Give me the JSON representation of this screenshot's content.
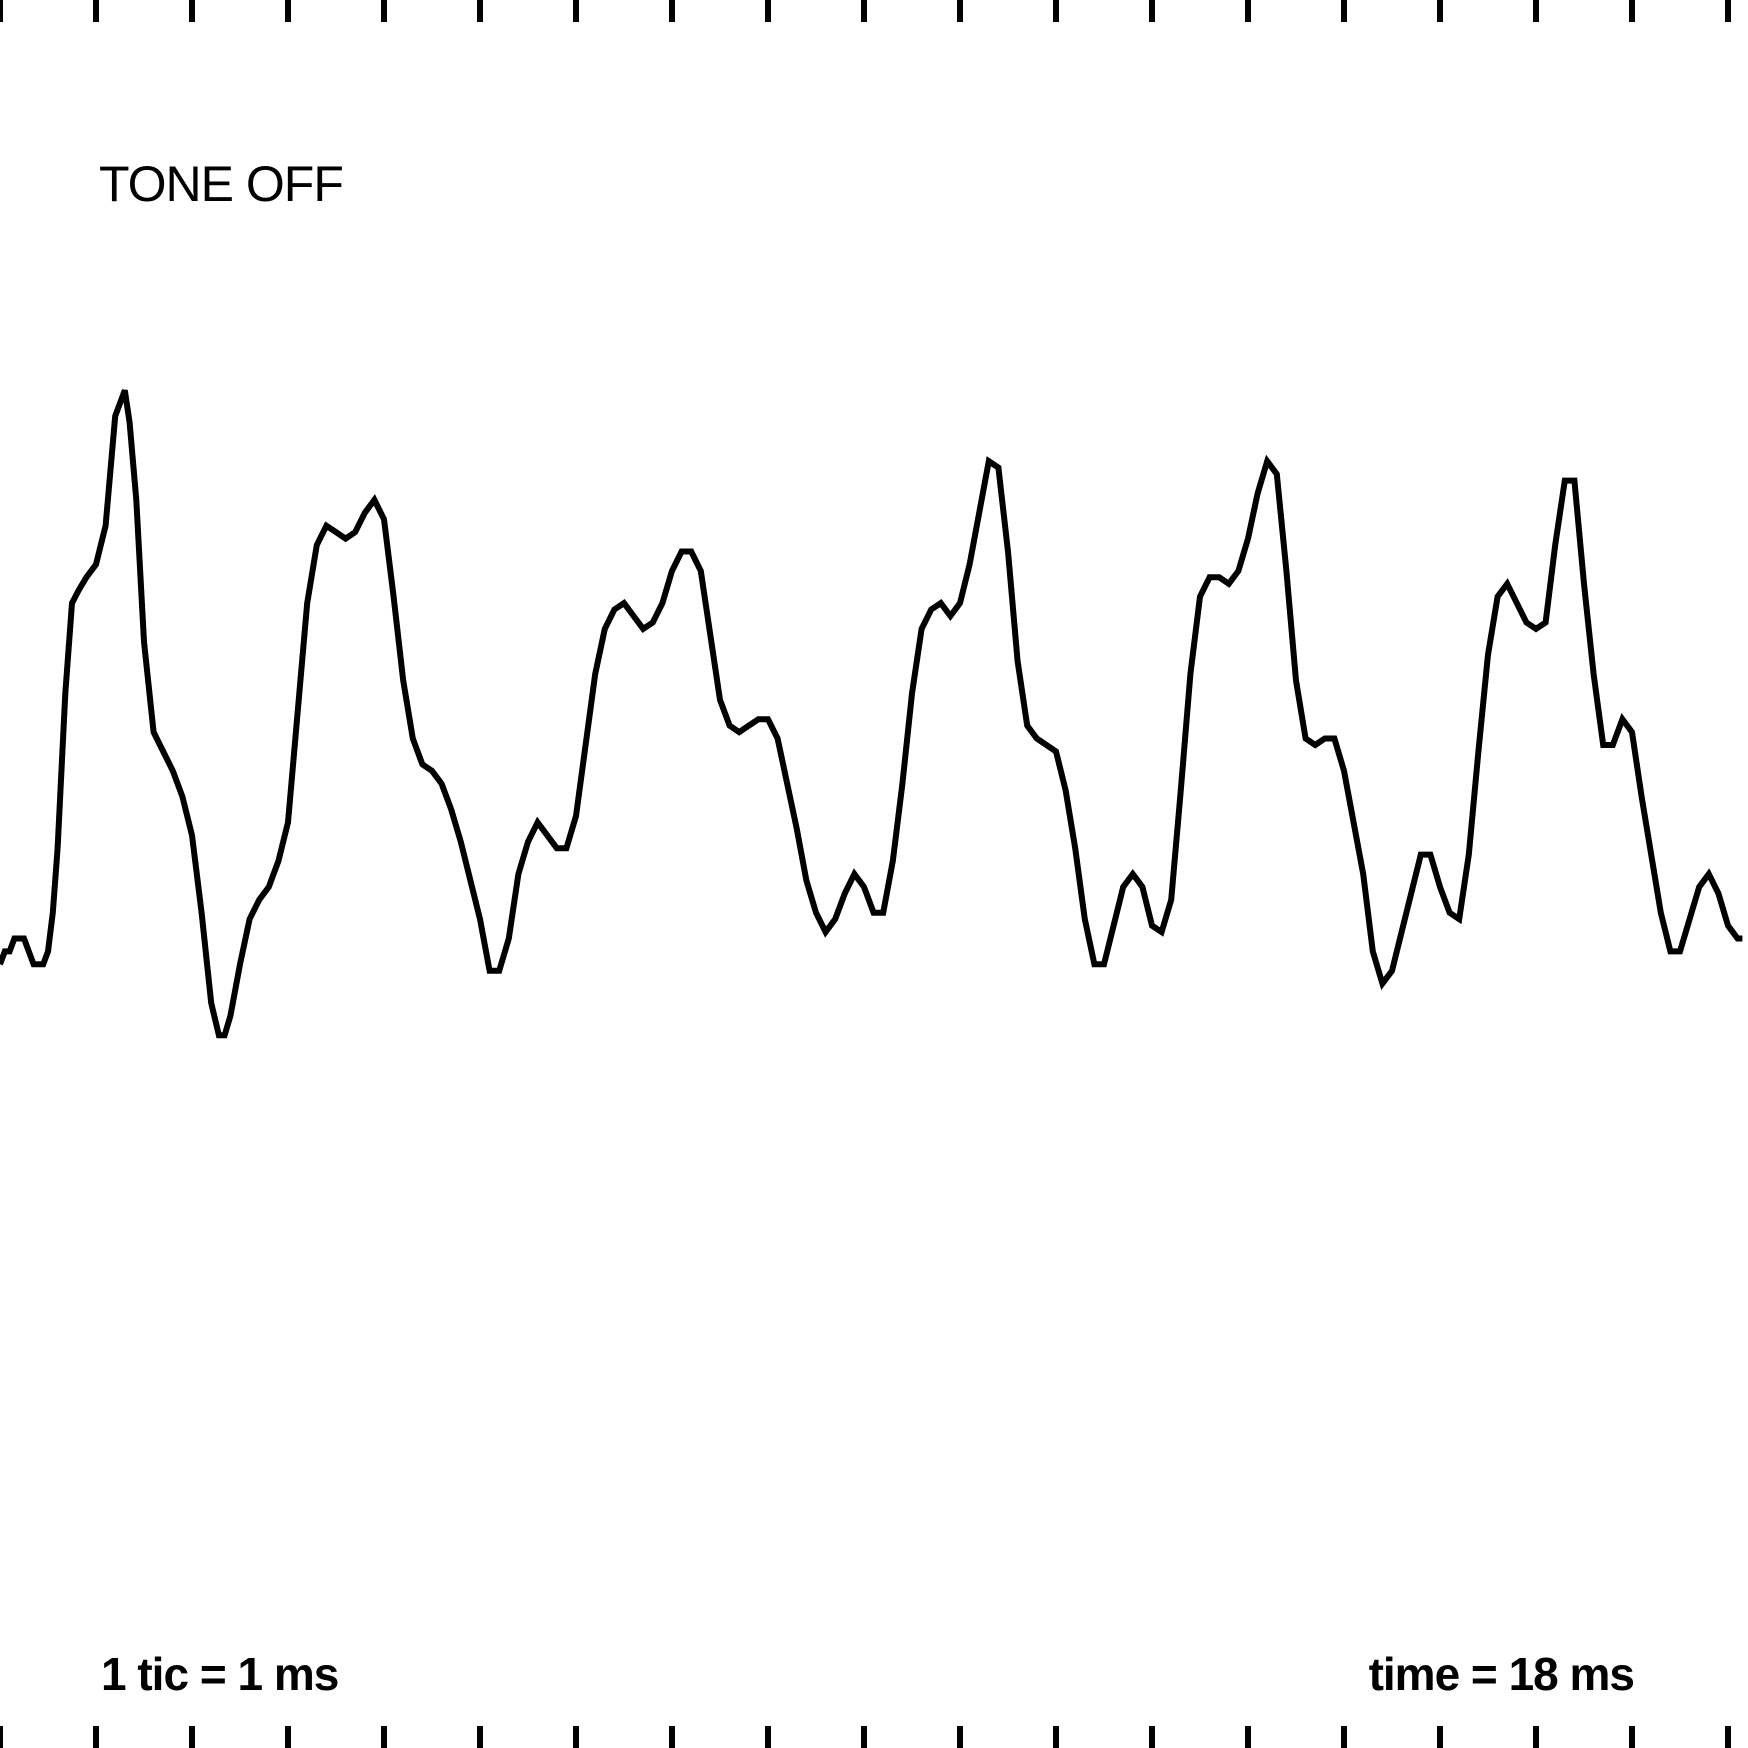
{
  "status_text": "TONE OFF",
  "scale_text": "1 tic = 1 ms",
  "time_text": "time = 18 ms",
  "colors": {
    "trace": "#000000",
    "ticks": "#000000",
    "background": "#ffffff"
  },
  "chart_data": {
    "type": "line",
    "xlim": [
      0,
      18.17
    ],
    "ylim": [
      -1,
      1
    ],
    "tick_interval_ms": 1,
    "tick_count": 19,
    "grid": false,
    "legend": "none",
    "series": [
      {
        "values": [
          [
            0.0,
            -0.14
          ],
          [
            0.05,
            -0.12
          ],
          [
            0.1,
            -0.12
          ],
          [
            0.15,
            -0.1
          ],
          [
            0.25,
            -0.1
          ],
          [
            0.3,
            -0.12
          ],
          [
            0.35,
            -0.14
          ],
          [
            0.45,
            -0.14
          ],
          [
            0.5,
            -0.12
          ],
          [
            0.55,
            -0.06
          ],
          [
            0.6,
            0.04
          ],
          [
            0.68,
            0.28
          ],
          [
            0.75,
            0.42
          ],
          [
            0.82,
            0.44
          ],
          [
            0.9,
            0.46
          ],
          [
            1.0,
            0.48
          ],
          [
            1.1,
            0.54
          ],
          [
            1.2,
            0.71
          ],
          [
            1.3,
            0.75
          ],
          [
            1.35,
            0.7
          ],
          [
            1.42,
            0.58
          ],
          [
            1.5,
            0.36
          ],
          [
            1.6,
            0.22
          ],
          [
            1.7,
            0.19
          ],
          [
            1.8,
            0.16
          ],
          [
            1.9,
            0.12
          ],
          [
            2.0,
            0.06
          ],
          [
            2.1,
            -0.06
          ],
          [
            2.2,
            -0.2
          ],
          [
            2.28,
            -0.25
          ],
          [
            2.34,
            -0.25
          ],
          [
            2.4,
            -0.22
          ],
          [
            2.5,
            -0.14
          ],
          [
            2.6,
            -0.07
          ],
          [
            2.7,
            -0.04
          ],
          [
            2.8,
            -0.02
          ],
          [
            2.9,
            0.02
          ],
          [
            3.0,
            0.08
          ],
          [
            3.1,
            0.25
          ],
          [
            3.2,
            0.42
          ],
          [
            3.3,
            0.51
          ],
          [
            3.4,
            0.54
          ],
          [
            3.5,
            0.53
          ],
          [
            3.6,
            0.52
          ],
          [
            3.7,
            0.53
          ],
          [
            3.8,
            0.56
          ],
          [
            3.9,
            0.58
          ],
          [
            4.0,
            0.55
          ],
          [
            4.1,
            0.43
          ],
          [
            4.2,
            0.3
          ],
          [
            4.3,
            0.21
          ],
          [
            4.4,
            0.17
          ],
          [
            4.5,
            0.16
          ],
          [
            4.6,
            0.14
          ],
          [
            4.7,
            0.1
          ],
          [
            4.8,
            0.05
          ],
          [
            4.9,
            -0.01
          ],
          [
            5.0,
            -0.07
          ],
          [
            5.1,
            -0.15
          ],
          [
            5.2,
            -0.15
          ],
          [
            5.3,
            -0.1
          ],
          [
            5.4,
            0.0
          ],
          [
            5.5,
            0.05
          ],
          [
            5.6,
            0.08
          ],
          [
            5.7,
            0.06
          ],
          [
            5.8,
            0.04
          ],
          [
            5.9,
            0.04
          ],
          [
            6.0,
            0.09
          ],
          [
            6.1,
            0.2
          ],
          [
            6.2,
            0.31
          ],
          [
            6.3,
            0.38
          ],
          [
            6.4,
            0.41
          ],
          [
            6.5,
            0.42
          ],
          [
            6.6,
            0.4
          ],
          [
            6.7,
            0.38
          ],
          [
            6.8,
            0.39
          ],
          [
            6.9,
            0.42
          ],
          [
            7.0,
            0.47
          ],
          [
            7.1,
            0.5
          ],
          [
            7.2,
            0.5
          ],
          [
            7.3,
            0.47
          ],
          [
            7.4,
            0.37
          ],
          [
            7.5,
            0.27
          ],
          [
            7.6,
            0.23
          ],
          [
            7.7,
            0.22
          ],
          [
            7.8,
            0.23
          ],
          [
            7.9,
            0.24
          ],
          [
            8.0,
            0.24
          ],
          [
            8.1,
            0.21
          ],
          [
            8.2,
            0.14
          ],
          [
            8.3,
            0.07
          ],
          [
            8.4,
            -0.01
          ],
          [
            8.5,
            -0.06
          ],
          [
            8.6,
            -0.09
          ],
          [
            8.7,
            -0.07
          ],
          [
            8.8,
            -0.03
          ],
          [
            8.9,
            0.0
          ],
          [
            9.0,
            -0.02
          ],
          [
            9.1,
            -0.06
          ],
          [
            9.2,
            -0.06
          ],
          [
            9.3,
            0.02
          ],
          [
            9.4,
            0.14
          ],
          [
            9.5,
            0.28
          ],
          [
            9.6,
            0.38
          ],
          [
            9.7,
            0.41
          ],
          [
            9.8,
            0.42
          ],
          [
            9.9,
            0.4
          ],
          [
            10.0,
            0.42
          ],
          [
            10.1,
            0.48
          ],
          [
            10.2,
            0.56
          ],
          [
            10.3,
            0.64
          ],
          [
            10.4,
            0.63
          ],
          [
            10.5,
            0.5
          ],
          [
            10.6,
            0.33
          ],
          [
            10.7,
            0.23
          ],
          [
            10.8,
            0.21
          ],
          [
            10.9,
            0.2
          ],
          [
            11.0,
            0.19
          ],
          [
            11.1,
            0.13
          ],
          [
            11.2,
            0.04
          ],
          [
            11.3,
            -0.07
          ],
          [
            11.4,
            -0.14
          ],
          [
            11.5,
            -0.14
          ],
          [
            11.6,
            -0.08
          ],
          [
            11.7,
            -0.02
          ],
          [
            11.8,
            0.0
          ],
          [
            11.9,
            -0.02
          ],
          [
            12.0,
            -0.08
          ],
          [
            12.1,
            -0.09
          ],
          [
            12.2,
            -0.04
          ],
          [
            12.3,
            0.13
          ],
          [
            12.4,
            0.31
          ],
          [
            12.5,
            0.43
          ],
          [
            12.6,
            0.46
          ],
          [
            12.7,
            0.46
          ],
          [
            12.8,
            0.45
          ],
          [
            12.9,
            0.47
          ],
          [
            13.0,
            0.52
          ],
          [
            13.1,
            0.59
          ],
          [
            13.2,
            0.64
          ],
          [
            13.3,
            0.62
          ],
          [
            13.4,
            0.47
          ],
          [
            13.5,
            0.3
          ],
          [
            13.6,
            0.21
          ],
          [
            13.7,
            0.2
          ],
          [
            13.8,
            0.21
          ],
          [
            13.9,
            0.21
          ],
          [
            14.0,
            0.16
          ],
          [
            14.1,
            0.08
          ],
          [
            14.2,
            0.0
          ],
          [
            14.3,
            -0.12
          ],
          [
            14.4,
            -0.17
          ],
          [
            14.5,
            -0.15
          ],
          [
            14.6,
            -0.09
          ],
          [
            14.7,
            -0.03
          ],
          [
            14.8,
            0.03
          ],
          [
            14.9,
            0.03
          ],
          [
            15.0,
            -0.02
          ],
          [
            15.1,
            -0.06
          ],
          [
            15.2,
            -0.07
          ],
          [
            15.3,
            0.03
          ],
          [
            15.4,
            0.19
          ],
          [
            15.5,
            0.34
          ],
          [
            15.6,
            0.43
          ],
          [
            15.7,
            0.45
          ],
          [
            15.8,
            0.42
          ],
          [
            15.9,
            0.39
          ],
          [
            16.0,
            0.38
          ],
          [
            16.1,
            0.39
          ],
          [
            16.2,
            0.51
          ],
          [
            16.3,
            0.61
          ],
          [
            16.4,
            0.61
          ],
          [
            16.5,
            0.45
          ],
          [
            16.6,
            0.31
          ],
          [
            16.7,
            0.2
          ],
          [
            16.8,
            0.2
          ],
          [
            16.9,
            0.24
          ],
          [
            17.0,
            0.22
          ],
          [
            17.1,
            0.12
          ],
          [
            17.2,
            0.03
          ],
          [
            17.3,
            -0.06
          ],
          [
            17.4,
            -0.12
          ],
          [
            17.5,
            -0.12
          ],
          [
            17.6,
            -0.07
          ],
          [
            17.7,
            -0.02
          ],
          [
            17.8,
            0.0
          ],
          [
            17.9,
            -0.03
          ],
          [
            18.0,
            -0.08
          ],
          [
            18.1,
            -0.1
          ],
          [
            18.15,
            -0.1
          ]
        ]
      }
    ]
  }
}
